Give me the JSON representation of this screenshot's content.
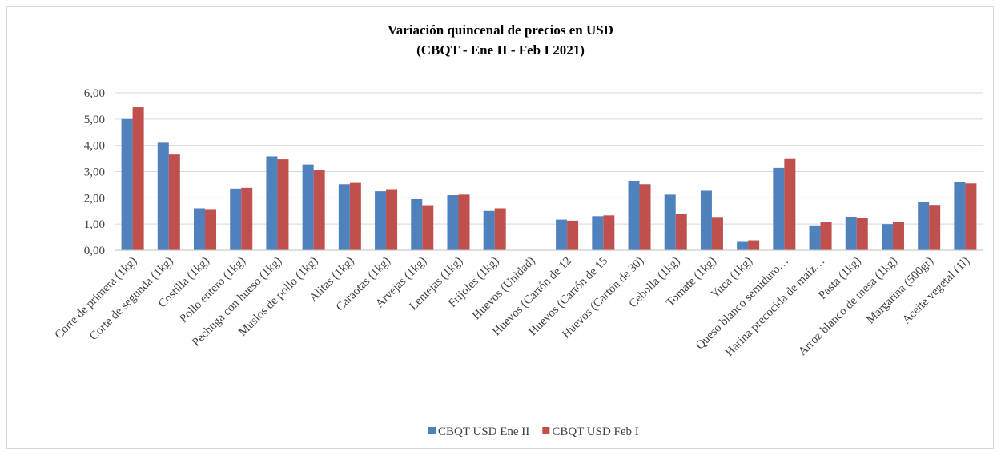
{
  "chart_data": {
    "type": "bar",
    "title": "Variación quincenal de precios en USD",
    "subtitle": "(CBQT - Ene II - Feb I 2021)",
    "categories": [
      "Corte de primera (1kg)",
      "Corte de segunda (1kg)",
      "Costilla (1kg)",
      "Pollo entero (1kg)",
      "Pechuga con hueso (1kg)",
      "Muslos de pollo (1kg)",
      "Alitas (1kg)",
      "Caraotas (1kg)",
      "Arvejas (1kg)",
      "Lentejas (1kg)",
      "Frijoles (1kg)",
      "Huevos (Unidad)",
      "Huevos (Cartón de 12",
      "Huevos (Cartón de 15",
      "Huevos (Cartón de 30)",
      "Cebolla (1kg)",
      "Tomate (1kg)",
      "Yuca (1kg)",
      "Queso blanco semiduro…",
      "Harina precocida de maíz…",
      "Pasta (1kg)",
      "Arroz blanco de mesa (1kg)",
      "Margarina (500gr)",
      "Aceite vegetal (1l)"
    ],
    "series": [
      {
        "name": "CBQT USD Ene II",
        "color": "#4f81bd",
        "values": [
          5.0,
          4.1,
          1.6,
          2.35,
          3.58,
          3.27,
          2.52,
          2.25,
          1.95,
          2.1,
          1.5,
          0,
          1.17,
          1.3,
          2.65,
          2.12,
          2.27,
          0.32,
          3.14,
          0.95,
          1.28,
          1.0,
          1.83,
          2.62
        ]
      },
      {
        "name": "CBQT USD Feb I",
        "color": "#c0504d",
        "values": [
          5.45,
          3.65,
          1.57,
          2.38,
          3.47,
          3.05,
          2.57,
          2.33,
          1.72,
          2.12,
          1.6,
          0,
          1.13,
          1.33,
          2.52,
          1.4,
          1.27,
          0.38,
          3.48,
          1.07,
          1.24,
          1.07,
          1.73,
          2.55
        ]
      }
    ],
    "ylim": [
      0,
      6
    ],
    "yticks": [
      {
        "value": 0,
        "label": "0,00"
      },
      {
        "value": 1,
        "label": "1,00"
      },
      {
        "value": 2,
        "label": "2,00"
      },
      {
        "value": 3,
        "label": "3,00"
      },
      {
        "value": 4,
        "label": "4,00"
      },
      {
        "value": 5,
        "label": "5,00"
      },
      {
        "value": 6,
        "label": "6,00"
      }
    ],
    "grid": true,
    "legend": "bottom"
  }
}
